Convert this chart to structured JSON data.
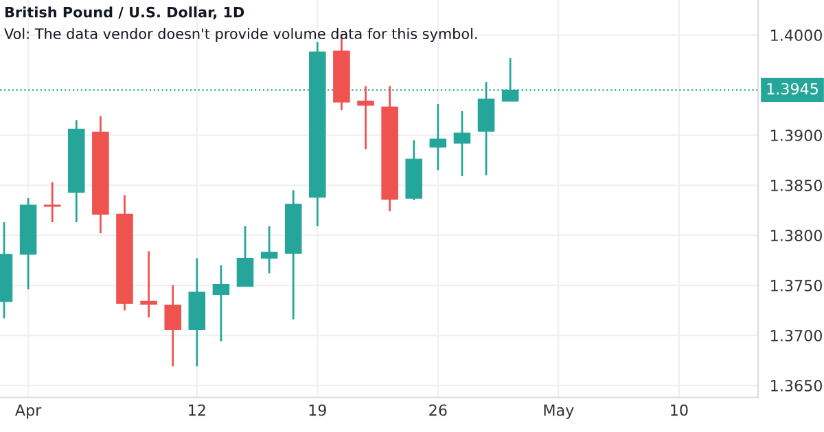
{
  "chart_data": {
    "type": "candlestick",
    "title": "British Pound / U.S. Dollar, 1D",
    "annotations": [
      "Vol: The data vendor doesn't provide volume data for this symbol."
    ],
    "categories": [
      null,
      "Apr",
      null,
      null,
      null,
      null,
      null,
      null,
      "12",
      null,
      null,
      null,
      null,
      "19",
      null,
      null,
      null,
      null,
      "26",
      null,
      null,
      null,
      null,
      "May",
      null,
      null,
      null,
      null,
      "10",
      null,
      null,
      null
    ],
    "ohlc": [
      [
        1.3734,
        1.3813,
        1.3717,
        1.3781
      ],
      [
        1.3781,
        1.3837,
        1.3746,
        1.383
      ],
      [
        1.383,
        1.3853,
        1.3813,
        1.3829
      ],
      [
        1.3843,
        1.3915,
        1.3813,
        1.3906
      ],
      [
        1.3903,
        1.3919,
        1.3802,
        1.3821
      ],
      [
        1.3821,
        1.384,
        1.3725,
        1.3732
      ],
      [
        1.3734,
        1.3784,
        1.3718,
        1.3731
      ],
      [
        1.373,
        1.375,
        1.3669,
        1.3706
      ],
      [
        1.3706,
        1.3777,
        1.3669,
        1.3743
      ],
      [
        1.3741,
        1.377,
        1.3694,
        1.3751
      ],
      [
        1.3749,
        1.3809,
        1.3749,
        1.3777
      ],
      [
        1.3777,
        1.3809,
        1.3762,
        1.3783
      ],
      [
        1.3782,
        1.3845,
        1.3716,
        1.3831
      ],
      [
        1.3838,
        1.3993,
        1.3809,
        1.3983
      ],
      [
        1.3984,
        1.4001,
        1.3925,
        1.3933
      ],
      [
        1.3934,
        1.3949,
        1.3886,
        1.393
      ],
      [
        1.3928,
        1.3949,
        1.3824,
        1.3836
      ],
      [
        1.3837,
        1.3895,
        1.3835,
        1.3876
      ],
      [
        1.3888,
        1.3931,
        1.3865,
        1.3896
      ],
      [
        1.3892,
        1.3924,
        1.3859,
        1.3902
      ],
      [
        1.3904,
        1.3953,
        1.386,
        1.3936
      ],
      [
        1.3934,
        1.3977,
        1.3934,
        1.3945
      ],
      null,
      null,
      null,
      null,
      null,
      null,
      null,
      null,
      null,
      null
    ],
    "colors": [
      "#26a69a",
      "#26a69a",
      "#ef5350",
      "#26a69a",
      "#ef5350",
      "#ef5350",
      "#ef5350",
      "#ef5350",
      "#26a69a",
      "#26a69a",
      "#26a69a",
      "#26a69a",
      "#26a69a",
      "#26a69a",
      "#ef5350",
      "#ef5350",
      "#ef5350",
      "#26a69a",
      "#26a69a",
      "#26a69a",
      "#26a69a",
      "#26a69a",
      null,
      null,
      null,
      null,
      null,
      null,
      null,
      null,
      null,
      null
    ],
    "ylim": [
      1.3638,
      1.4035
    ],
    "yticks": [
      {
        "value": 1.365,
        "label": "1.3650"
      },
      {
        "value": 1.37,
        "label": "1.3700"
      },
      {
        "value": 1.375,
        "label": "1.3750"
      },
      {
        "value": 1.38,
        "label": "1.3800"
      },
      {
        "value": 1.385,
        "label": "1.3850"
      },
      {
        "value": 1.39,
        "label": "1.3900"
      },
      {
        "value": 1.4,
        "label": "1.4000"
      }
    ],
    "ref_lines": [
      {
        "axis": "y",
        "value": 1.3945,
        "label": "1.3945",
        "color": "#26a69a",
        "line_style": "dotted"
      }
    ],
    "grid": true
  }
}
